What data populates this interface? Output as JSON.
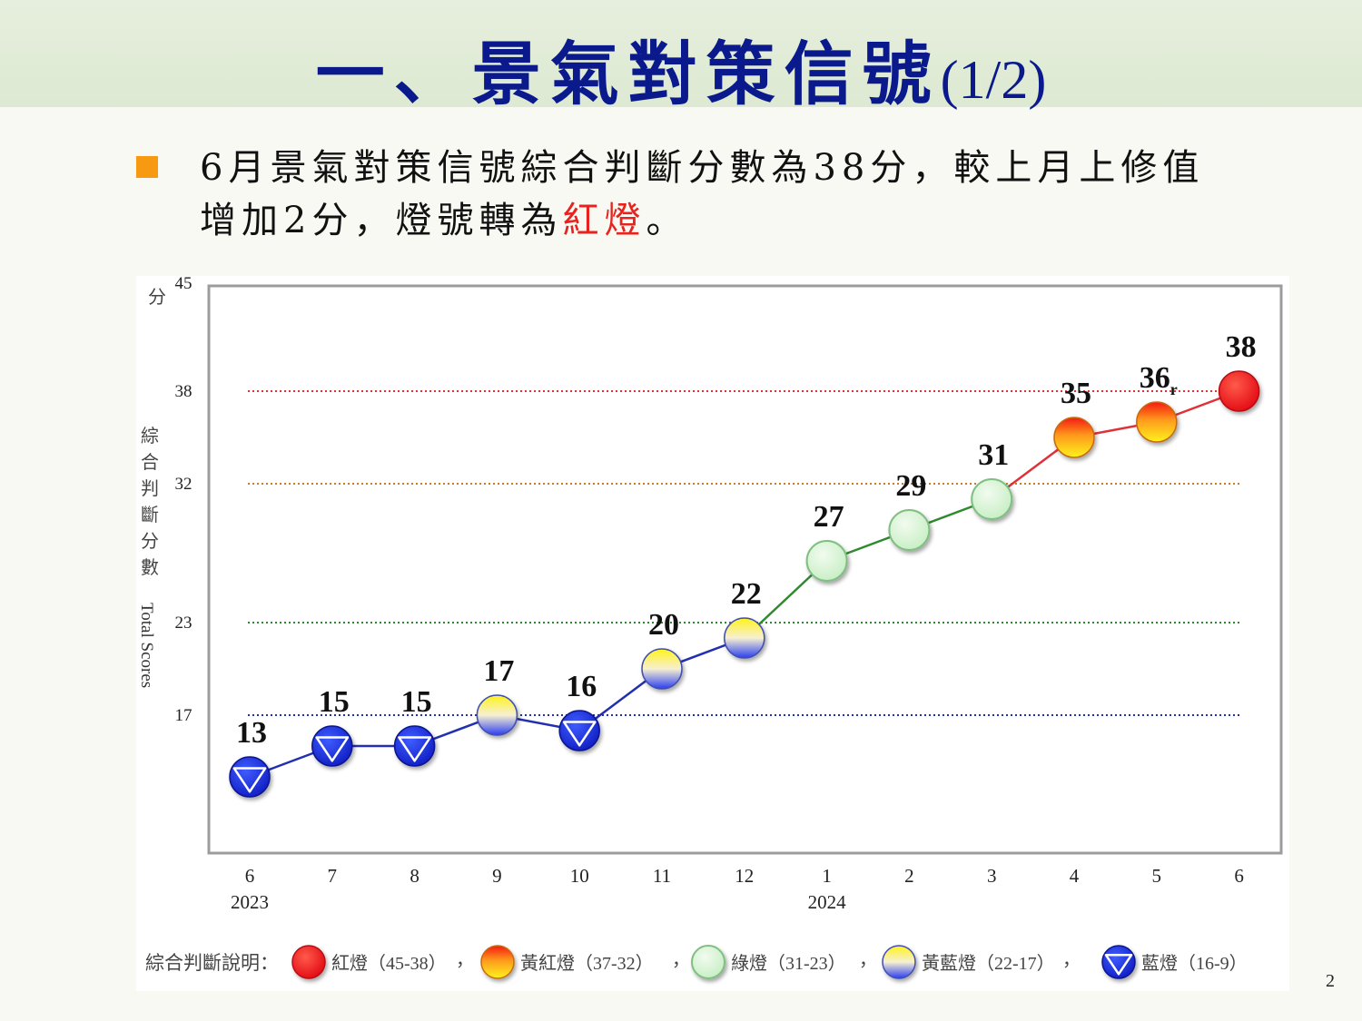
{
  "slide": {
    "title_main": "一、景氣對策信號",
    "title_suffix": "(1/2)",
    "text_line1": "6月景氣對策信號綜合判斷分數為38分，較上月上修值",
    "text_line2_a": "增加2分，燈號轉為",
    "text_line2_red": "紅燈",
    "text_line2_b": "。",
    "page_number": "2"
  },
  "colors": {
    "title": "#0a1a8c",
    "accent_bullet": "#f79a12",
    "red_highlight": "#e8231f",
    "red_line": "#e0303a",
    "orange_line": "#c97e22",
    "green_line": "#2f8a2f",
    "blue_line": "#2230b0"
  },
  "chart_data": {
    "type": "line",
    "ylabel_cn": "綜合判斷分數",
    "ylabel_unit": "分",
    "ylabel_en": "Total Scores",
    "ylim": [
      9,
      45
    ],
    "yticks": [
      17,
      23,
      32,
      38,
      45
    ],
    "categories": [
      "6",
      "7",
      "8",
      "9",
      "10",
      "11",
      "12",
      "1",
      "2",
      "3",
      "4",
      "5",
      "6"
    ],
    "year_labels": [
      {
        "index": 0,
        "label": "2023"
      },
      {
        "index": 7,
        "label": "2024"
      }
    ],
    "series": [
      {
        "values": [
          13,
          15,
          15,
          17,
          16,
          20,
          22,
          27,
          29,
          31,
          35,
          36,
          38
        ],
        "labels": [
          "13",
          "15",
          "15",
          "17",
          "16",
          "20",
          "22",
          "27",
          "29",
          "31",
          "35",
          "36",
          "38"
        ],
        "revised_flags": [
          "",
          "",
          "",
          "",
          "",
          "",
          "",
          "",
          "",
          "",
          "",
          "r",
          ""
        ],
        "signals": [
          "blue",
          "blue",
          "blue",
          "yellow-blue",
          "blue",
          "yellow-blue",
          "yellow-blue",
          "green",
          "green",
          "green",
          "yellow-red",
          "yellow-red",
          "red"
        ]
      }
    ],
    "threshold_lines": [
      {
        "value": 38,
        "color": "red"
      },
      {
        "value": 32,
        "color": "orange"
      },
      {
        "value": 23,
        "color": "green"
      },
      {
        "value": 17,
        "color": "blue"
      }
    ],
    "legend": {
      "title": "綜合判斷說明：",
      "separator": "，",
      "items": [
        {
          "signal": "red",
          "label": "紅燈（45-38）"
        },
        {
          "signal": "yellow-red",
          "label": "黃紅燈（37-32）"
        },
        {
          "signal": "green",
          "label": "綠燈（31-23）"
        },
        {
          "signal": "yellow-blue",
          "label": "黃藍燈（22-17）"
        },
        {
          "signal": "blue",
          "label": "藍燈（16-9）"
        }
      ]
    }
  }
}
